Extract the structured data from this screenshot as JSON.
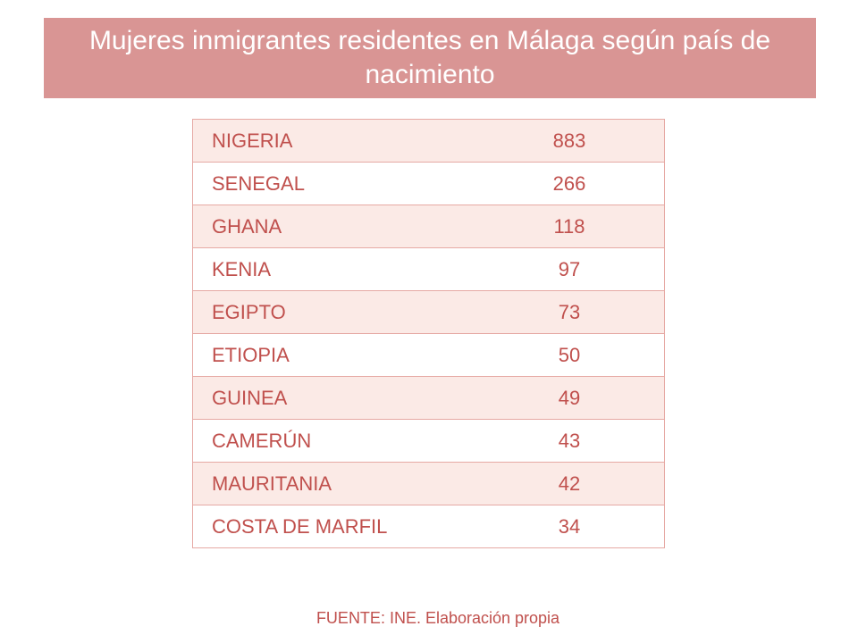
{
  "title": "Mujeres inmigrantes residentes en Málaga según país de nacimiento",
  "colors": {
    "banner": "#d99594",
    "text": "#c0504d",
    "row_shade": "#fbeae6",
    "border": "#e6a9a4"
  },
  "table": {
    "rows": [
      {
        "country": "NIGERIA",
        "value": "883"
      },
      {
        "country": "SENEGAL",
        "value": "266"
      },
      {
        "country": "GHANA",
        "value": "118"
      },
      {
        "country": "KENIA",
        "value": "97"
      },
      {
        "country": "EGIPTO",
        "value": "73"
      },
      {
        "country": "ETIOPIA",
        "value": "50"
      },
      {
        "country": "GUINEA",
        "value": "49"
      },
      {
        "country": "CAMERÚN",
        "value": "43"
      },
      {
        "country": "MAURITANIA",
        "value": "42"
      },
      {
        "country": "COSTA DE MARFIL",
        "value": "34"
      }
    ]
  },
  "source": "FUENTE: INE. Elaboración propia"
}
